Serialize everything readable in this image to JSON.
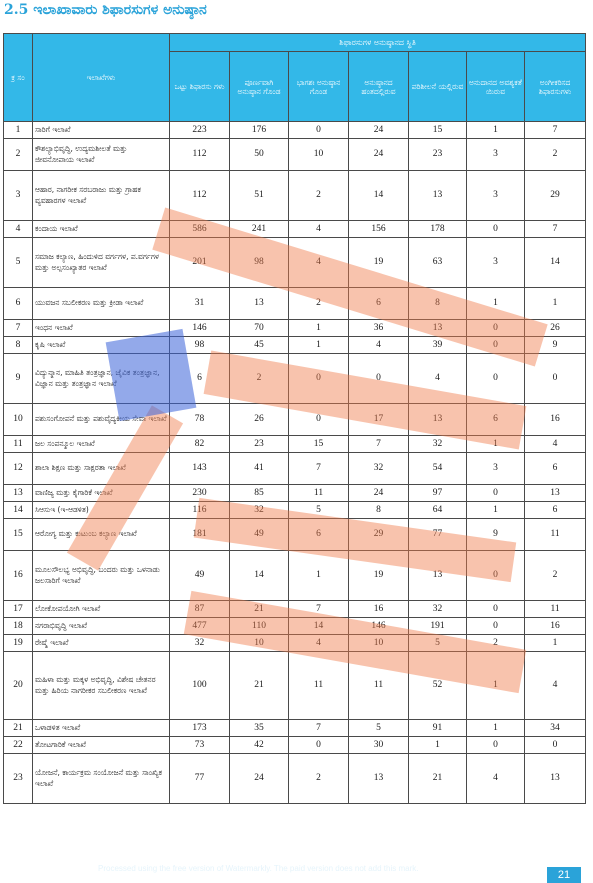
{
  "heading": "2.5 ಇಲಾಖಾವಾರು ಶಿಫಾರಸುಗಳ ಅನುಷ್ಠಾನ",
  "table": {
    "col_sl": "ಕ್ರ ಸಂ",
    "col_dept": "ಇಲಾಖೆಗಳು",
    "group_header": "ಶಿಫಾರಸುಗಳ ಅನುಷ್ಠಾನದ ಸ್ಥಿತಿ",
    "sub_headers": [
      "ಒಟ್ಟು ಶಿಫಾರಸು ಗಳು",
      "ಪೂರ್ಣವಾಗಿ ಅನುಷ್ಠಾನ ಗೊಂಡ",
      "ಭಾಗಶಃ ಅನುಷ್ಠಾನ ಗೊಂಡ",
      "ಅನುಷ್ಠಾನದ ಹಂತದಲ್ಲಿರುವ",
      "ಪರಿಶೀಲನೆ ಯಲ್ಲಿರುವ",
      "ಅನುದಾನದ ಅವಶ್ಯಕತೆ ಯಿರುವ",
      "ಅಂಗೀಕರಿಸದ ಶಿಫಾರಸುಗಳು"
    ],
    "rows": [
      {
        "sl": "1",
        "dept": "ಸಾರಿಗೆ ಇಲಾಖೆ",
        "vals": [
          "223",
          "176",
          "0",
          "24",
          "15",
          "1",
          "7"
        ]
      },
      {
        "sl": "2",
        "dept": "ಕೌಶಲ್ಯಾಭಿವೃದ್ಧಿ, ಉದ್ಯಮಶೀಲತೆ ಮತ್ತು ಜೀವನೋಪಾಯ ಇಲಾಖೆ",
        "vals": [
          "112",
          "50",
          "10",
          "24",
          "23",
          "3",
          "2"
        ]
      },
      {
        "sl": "3",
        "dept": "ಆಹಾರ, ನಾಗರೀಕ ಸರಬರಾಜು ಮತ್ತು ಗ್ರಾಹಕ ವ್ಯವಹಾರಗಳ ಇಲಾಖೆ",
        "vals": [
          "112",
          "51",
          "2",
          "14",
          "13",
          "3",
          "29"
        ]
      },
      {
        "sl": "4",
        "dept": "ಕಂದಾಯ ಇಲಾಖೆ",
        "vals": [
          "586",
          "241",
          "4",
          "156",
          "178",
          "0",
          "7"
        ]
      },
      {
        "sl": "5",
        "dept": "ಸಮಾಜ ಕಲ್ಯಾಣ, ಹಿಂದುಳಿದ ವರ್ಗಗಳ, ಪ.ವರ್ಗಗಳ ಮತ್ತು ಅಲ್ಪಸಂಖ್ಯಾತರ ಇಲಾಖೆ",
        "vals": [
          "201",
          "98",
          "4",
          "19",
          "63",
          "3",
          "14"
        ]
      },
      {
        "sl": "6",
        "dept": "ಯುವಜನ ಸಬಲೀಕರಣ ಮತ್ತು ಕ್ರೀಡಾ ಇಲಾಖೆ",
        "vals": [
          "31",
          "13",
          "2",
          "6",
          "8",
          "1",
          "1"
        ]
      },
      {
        "sl": "7",
        "dept": "ಇಂಧನ ಇಲಾಖೆ",
        "vals": [
          "146",
          "70",
          "1",
          "36",
          "13",
          "0",
          "26"
        ]
      },
      {
        "sl": "8",
        "dept": "ಕೃಷಿ ಇಲಾಖೆ",
        "vals": [
          "98",
          "45",
          "1",
          "4",
          "39",
          "0",
          "9"
        ]
      },
      {
        "sl": "9",
        "dept": "ವಿದ್ಯುನ್ಮಾನ, ಮಾಹಿತಿ ತಂತ್ರಜ್ಞಾನ, ಜೈವಿಕ ತಂತ್ರಜ್ಞಾನ, ವಿಜ್ಞಾನ ಮತ್ತು ತಂತ್ರಜ್ಞಾನ ಇಲಾಖೆ",
        "vals": [
          "6",
          "2",
          "0",
          "0",
          "4",
          "0",
          "0"
        ]
      },
      {
        "sl": "10",
        "dept": "ಪಶುಸಂಗೋಪನೆ ಮತ್ತು ಪಶುವೈದ್ಯಕೀಯ ಸೇವಾ ಇಲಾಖೆ",
        "vals": [
          "78",
          "26",
          "0",
          "17",
          "13",
          "6",
          "16"
        ]
      },
      {
        "sl": "11",
        "dept": "ಜಲ ಸಂಪನ್ಮೂಲ ಇಲಾಖೆ",
        "vals": [
          "82",
          "23",
          "15",
          "7",
          "32",
          "1",
          "4"
        ]
      },
      {
        "sl": "12",
        "dept": "ಶಾಲಾ ಶಿಕ್ಷಣ ಮತ್ತು ಸಾಕ್ಷರತಾ ಇಲಾಖೆ",
        "vals": [
          "143",
          "41",
          "7",
          "32",
          "54",
          "3",
          "6"
        ]
      },
      {
        "sl": "13",
        "dept": "ವಾಣಿಜ್ಯ ಮತ್ತು ಕೈಗಾರಿಕೆ ಇಲಾಖೆ",
        "vals": [
          "230",
          "85",
          "11",
          "24",
          "97",
          "0",
          "13"
        ]
      },
      {
        "sl": "14",
        "dept": "ಸಿಆಸುಇ (ಇ-ಆಡಳಿತ)",
        "vals": [
          "116",
          "32",
          "5",
          "8",
          "64",
          "1",
          "6"
        ]
      },
      {
        "sl": "15",
        "dept": "ಆರೋಗ್ಯ ಮತ್ತು ಕುಟುಂಬ ಕಲ್ಯಾಣ ಇಲಾಖೆ",
        "vals": [
          "181",
          "49",
          "6",
          "29",
          "77",
          "9",
          "11"
        ]
      },
      {
        "sl": "16",
        "dept": "ಮೂಲಸೌಲಭ್ಯ ಅಭಿವೃದ್ಧಿ, ಬಂದರು ಮತ್ತು ಒಳನಾಡು ಜಲಸಾರಿಗೆ ಇಲಾಖೆ",
        "vals": [
          "49",
          "14",
          "1",
          "19",
          "13",
          "0",
          "2"
        ]
      },
      {
        "sl": "17",
        "dept": "ಲೋಕೋಪಯೋಗಿ ಇಲಾಖೆ",
        "vals": [
          "87",
          "21",
          "7",
          "16",
          "32",
          "0",
          "11"
        ]
      },
      {
        "sl": "18",
        "dept": "ನಗರಾಭಿವೃದ್ಧಿ ಇಲಾಖೆ",
        "vals": [
          "477",
          "110",
          "14",
          "146",
          "191",
          "0",
          "16"
        ]
      },
      {
        "sl": "19",
        "dept": "ರೇಷ್ಮೆ ಇಲಾಖೆ",
        "vals": [
          "32",
          "10",
          "4",
          "10",
          "5",
          "2",
          "1"
        ]
      },
      {
        "sl": "20",
        "dept": "ಮಹಿಳಾ ಮತ್ತು ಮಕ್ಕಳ ಅಭಿವೃದ್ಧಿ, ವಿಶೇಷ ಚೇತನರ ಮತ್ತು ಹಿರಿಯ ನಾಗರೀಕರ ಸಬಲೀಕರಣ ಇಲಾಖೆ",
        "vals": [
          "100",
          "21",
          "11",
          "11",
          "52",
          "1",
          "4"
        ]
      },
      {
        "sl": "21",
        "dept": "ಒಳಾಡಳಿತ ಇಲಾಖೆ",
        "vals": [
          "173",
          "35",
          "7",
          "5",
          "91",
          "1",
          "34"
        ]
      },
      {
        "sl": "22",
        "dept": "ತೋಟಗಾರಿಕೆ ಇಲಾಖೆ",
        "vals": [
          "73",
          "42",
          "0",
          "30",
          "1",
          "0",
          "0"
        ]
      },
      {
        "sl": "23",
        "dept": "ಯೋಜನೆ, ಕಾರ್ಯಕ್ರಮ ಸಂಯೋಜನೆ ಮತ್ತು ಸಾಂಖ್ಯಿಕ ಇಲಾಖೆ",
        "vals": [
          "77",
          "24",
          "2",
          "13",
          "21",
          "4",
          "13"
        ]
      }
    ]
  },
  "footer": {
    "watermark_text": "Processed using the free version of Watermarkly. The paid version does not add this mark.",
    "page_number": "21"
  }
}
